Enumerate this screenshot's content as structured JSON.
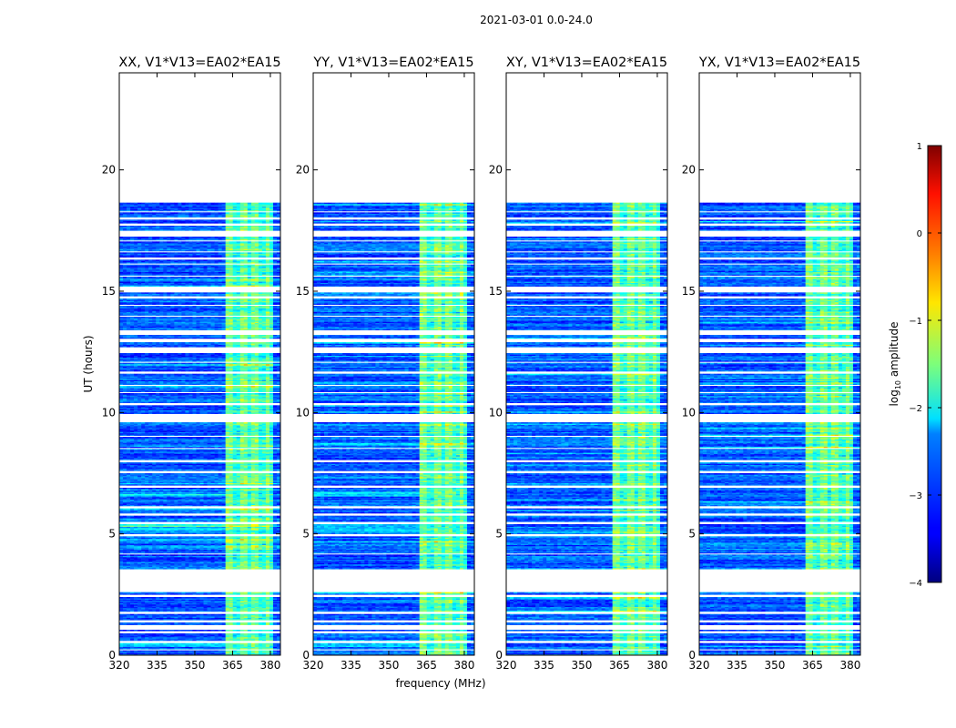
{
  "figure_title": "2021-03-01 0.0-24.0",
  "chart_data": {
    "type": "heatmap",
    "title": "2021-03-01 0.0-24.0",
    "xlabel": "frequency (MHz)",
    "ylabel": "UT (hours)",
    "xlim": [
      320,
      384
    ],
    "ylim": [
      0,
      24
    ],
    "x_ticks": [
      320,
      335,
      350,
      365,
      380
    ],
    "y_ticks": [
      0,
      5,
      10,
      15,
      20
    ],
    "data_end_hour": 18.65,
    "blank_hour_bands": [
      [
        0.2,
        0.25
      ],
      [
        0.5,
        0.58
      ],
      [
        0.9,
        1.0
      ],
      [
        1.05,
        1.25
      ],
      [
        1.35,
        1.45
      ],
      [
        1.7,
        1.8
      ],
      [
        2.4,
        2.5
      ],
      [
        2.6,
        3.55
      ],
      [
        4.15,
        4.22
      ],
      [
        4.9,
        5.0
      ],
      [
        5.4,
        5.5
      ],
      [
        5.75,
        5.85
      ],
      [
        6.05,
        6.15
      ],
      [
        6.9,
        7.0
      ],
      [
        7.5,
        7.6
      ],
      [
        7.95,
        8.05
      ],
      [
        8.5,
        8.55
      ],
      [
        9.0,
        9.05
      ],
      [
        9.6,
        9.95
      ],
      [
        10.3,
        10.38
      ],
      [
        10.8,
        10.85
      ],
      [
        11.1,
        11.15
      ],
      [
        11.6,
        11.68
      ],
      [
        12.05,
        12.12
      ],
      [
        12.45,
        12.7
      ],
      [
        12.9,
        13.05
      ],
      [
        13.2,
        13.4
      ],
      [
        13.95,
        14.02
      ],
      [
        14.4,
        14.45
      ],
      [
        14.7,
        14.78
      ],
      [
        14.95,
        15.2
      ],
      [
        15.6,
        15.65
      ],
      [
        16.1,
        16.15
      ],
      [
        16.3,
        16.4
      ],
      [
        16.6,
        16.65
      ],
      [
        17.05,
        17.12
      ],
      [
        17.25,
        17.5
      ],
      [
        17.7,
        17.8
      ],
      [
        17.95,
        18.05
      ],
      [
        18.25,
        18.3
      ]
    ],
    "panels": [
      {
        "name": "XX",
        "title": "XX, V1*V13=EA02*EA15"
      },
      {
        "name": "YY",
        "title": "YY, V1*V13=EA02*EA15"
      },
      {
        "name": "XY",
        "title": "XY, V1*V13=EA02*EA15"
      },
      {
        "name": "YX",
        "title": "YX, V1*V13=EA02*EA15"
      }
    ],
    "bright_frequency_range_mhz": [
      362,
      381
    ],
    "colorbar": {
      "label": "log10 amplitude",
      "label_prefix": "log",
      "label_sub": "10",
      "label_suffix": " amplitude",
      "range": [
        -4,
        1
      ],
      "ticks": [
        1,
        0,
        -1,
        -2,
        -3,
        -4
      ],
      "tick_labels": [
        "1",
        "0",
        "−1",
        "−2",
        "−3",
        "−4"
      ],
      "colormap": "jet"
    }
  }
}
